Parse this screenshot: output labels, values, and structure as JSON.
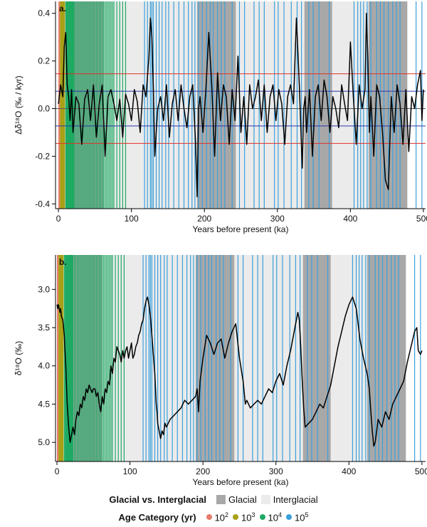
{
  "chart_data": [
    {
      "type": "line",
      "panel_label": "a.",
      "ylabel": "Δδ¹⁸O (‰ / kyr)",
      "xlabel": "Years before present (ka)",
      "xlim": [
        -4,
        503
      ],
      "ylim": [
        -0.42,
        0.45
      ],
      "xticks": [
        0,
        100,
        200,
        300,
        400,
        500
      ],
      "yticks": [
        -0.4,
        -0.2,
        0.0,
        0.2,
        0.4
      ],
      "ytick_labels": [
        "-0.4",
        "-0.2",
        "0.0",
        "0.2",
        "0.4"
      ],
      "hlines": [
        {
          "y": 0.146,
          "color": "#e0302b"
        },
        {
          "y": -0.146,
          "color": "#e0302b"
        },
        {
          "y": 0.073,
          "color": "#2b35a8"
        },
        {
          "y": -0.073,
          "color": "#2b35a8"
        },
        {
          "y": 0.0,
          "color": "#555555"
        }
      ],
      "series": [
        {
          "x": [
            0,
            3,
            6,
            8,
            10,
            12,
            14,
            16,
            18,
            20,
            24,
            28,
            32,
            36,
            40,
            44,
            48,
            52,
            56,
            60,
            64,
            68,
            72,
            76,
            80,
            84,
            88,
            92,
            96,
            100,
            104,
            108,
            112,
            116,
            120,
            124,
            126,
            128,
            130,
            132,
            134,
            136,
            140,
            144,
            148,
            152,
            156,
            160,
            164,
            168,
            172,
            176,
            180,
            184,
            188,
            190,
            192,
            194,
            198,
            202,
            206,
            210,
            214,
            218,
            222,
            226,
            230,
            234,
            238,
            242,
            246,
            250,
            254,
            258,
            262,
            266,
            270,
            274,
            278,
            282,
            286,
            290,
            294,
            298,
            302,
            306,
            310,
            314,
            318,
            322,
            326,
            330,
            334,
            336,
            338,
            340,
            344,
            348,
            352,
            356,
            360,
            364,
            368,
            372,
            376,
            380,
            384,
            388,
            392,
            396,
            400,
            404,
            408,
            412,
            416,
            420,
            422,
            424,
            426,
            428,
            432,
            436,
            440,
            444,
            448,
            452,
            456,
            460,
            464,
            468,
            472,
            476,
            480,
            484,
            488,
            492,
            496,
            498,
            500
          ],
          "values": [
            0.02,
            0.1,
            0.05,
            0.26,
            0.32,
            0.1,
            0.05,
            -0.05,
            0.08,
            -0.1,
            0.05,
            0.02,
            -0.15,
            0.04,
            0.08,
            -0.05,
            0.1,
            -0.12,
            0.02,
            0.1,
            -0.2,
            0.05,
            0.08,
            0.02,
            -0.05,
            0.04,
            -0.12,
            0.06,
            0.02,
            -0.05,
            0.08,
            0.03,
            -0.1,
            0.1,
            0.05,
            0.22,
            0.38,
            0.3,
            0.1,
            -0.2,
            -0.1,
            0.0,
            0.05,
            -0.05,
            0.1,
            -0.12,
            0.02,
            0.08,
            -0.05,
            0.1,
            0.0,
            -0.08,
            0.05,
            0.1,
            -0.15,
            -0.37,
            0.0,
            0.05,
            -0.1,
            0.08,
            0.32,
            0.1,
            -0.2,
            0.15,
            -0.05,
            0.1,
            0.05,
            -0.15,
            0.08,
            -0.05,
            0.22,
            -0.1,
            0.05,
            -0.15,
            0.1,
            0.0,
            0.05,
            0.12,
            -0.05,
            0.1,
            -0.1,
            0.05,
            0.1,
            -0.05,
            0.08,
            0.02,
            -0.15,
            0.05,
            0.1,
            0.02,
            0.38,
            0.1,
            -0.25,
            0.0,
            0.05,
            -0.1,
            0.08,
            -0.2,
            0.05,
            0.1,
            -0.05,
            0.12,
            0.05,
            -0.1,
            0.05,
            0.0,
            -0.08,
            0.1,
            0.02,
            -0.05,
            0.28,
            0.05,
            -0.15,
            0.1,
            0.0,
            0.08,
            0.4,
            0.2,
            -0.1,
            0.05,
            -0.2,
            0.1,
            0.05,
            -0.1,
            -0.3,
            -0.34,
            0.05,
            -0.1,
            0.1,
            0.02,
            -0.15,
            0.08,
            -0.18,
            0.05,
            0.0,
            0.1,
            0.16,
            -0.05,
            0.08
          ]
        }
      ]
    },
    {
      "type": "line",
      "panel_label": "b.",
      "ylabel": "δ¹⁸O (‰)",
      "xlabel": "Years before present (ka)",
      "xlim": [
        -2,
        505
      ],
      "ylim": [
        5.25,
        2.55
      ],
      "y_inverted": true,
      "xticks": [
        0,
        100,
        200,
        300,
        400,
        500
      ],
      "yticks": [
        3.0,
        3.5,
        4.0,
        4.5,
        5.0
      ],
      "ytick_labels": [
        "3.0",
        "3.5",
        "4.0",
        "4.5",
        "5.0"
      ],
      "series": [
        {
          "x": [
            0,
            1,
            2,
            4,
            5,
            6,
            8,
            10,
            12,
            14,
            16,
            18,
            20,
            22,
            24,
            26,
            28,
            30,
            32,
            34,
            36,
            38,
            40,
            42,
            44,
            46,
            48,
            50,
            52,
            54,
            56,
            58,
            60,
            62,
            64,
            66,
            68,
            70,
            72,
            74,
            76,
            78,
            80,
            82,
            84,
            86,
            88,
            90,
            92,
            94,
            96,
            98,
            100,
            102,
            104,
            106,
            108,
            110,
            112,
            114,
            116,
            118,
            120,
            122,
            124,
            126,
            128,
            130,
            132,
            134,
            135,
            136,
            137,
            138,
            140,
            142,
            144,
            146,
            148,
            150,
            155,
            160,
            165,
            170,
            175,
            180,
            185,
            190,
            192,
            194,
            196,
            200,
            205,
            210,
            215,
            220,
            225,
            230,
            235,
            240,
            245,
            250,
            255,
            258,
            260,
            265,
            270,
            275,
            280,
            285,
            290,
            295,
            300,
            305,
            310,
            315,
            320,
            325,
            330,
            332,
            334,
            336,
            338,
            340,
            345,
            350,
            355,
            360,
            365,
            370,
            375,
            380,
            385,
            390,
            395,
            400,
            405,
            410,
            412,
            415,
            420,
            425,
            428,
            430,
            432,
            434,
            436,
            438,
            440,
            445,
            450,
            455,
            460,
            465,
            470,
            475,
            480,
            485,
            490,
            493,
            495,
            498,
            500
          ],
          "values": [
            3.2,
            3.25,
            3.2,
            3.3,
            3.25,
            3.35,
            3.4,
            3.6,
            4.0,
            4.5,
            4.8,
            5.0,
            4.9,
            4.8,
            4.9,
            4.7,
            4.6,
            4.65,
            4.5,
            4.55,
            4.4,
            4.45,
            4.3,
            4.35,
            4.25,
            4.3,
            4.35,
            4.3,
            4.3,
            4.4,
            4.35,
            4.5,
            4.6,
            4.4,
            4.5,
            4.3,
            4.35,
            4.2,
            4.25,
            4.0,
            4.1,
            3.9,
            3.95,
            3.75,
            3.8,
            3.85,
            3.95,
            3.8,
            3.9,
            3.8,
            3.75,
            3.9,
            3.8,
            3.7,
            3.9,
            3.85,
            3.75,
            3.7,
            3.6,
            3.55,
            3.45,
            3.4,
            3.25,
            3.15,
            3.1,
            3.2,
            3.35,
            3.6,
            3.85,
            4.1,
            4.3,
            4.5,
            4.6,
            4.75,
            4.85,
            4.95,
            4.85,
            4.9,
            4.75,
            4.8,
            4.7,
            4.65,
            4.6,
            4.55,
            4.45,
            4.5,
            4.45,
            4.4,
            4.3,
            4.6,
            4.2,
            3.9,
            3.6,
            3.7,
            3.85,
            3.7,
            3.65,
            3.9,
            3.7,
            3.55,
            3.45,
            3.9,
            4.2,
            4.5,
            4.45,
            4.55,
            4.5,
            4.45,
            4.5,
            4.4,
            4.3,
            4.35,
            4.2,
            4.1,
            4.25,
            4.0,
            3.8,
            3.55,
            3.3,
            3.4,
            3.75,
            4.2,
            4.55,
            4.8,
            4.75,
            4.7,
            4.6,
            4.5,
            4.55,
            4.4,
            4.25,
            4.0,
            3.75,
            3.55,
            3.35,
            3.2,
            3.1,
            3.25,
            3.4,
            3.65,
            3.9,
            4.1,
            4.3,
            4.6,
            4.85,
            5.05,
            5.0,
            4.85,
            4.7,
            4.8,
            4.6,
            4.7,
            4.5,
            4.4,
            4.3,
            4.2,
            3.95,
            3.75,
            3.55,
            3.5,
            3.8,
            3.85,
            3.8
          ]
        }
      ]
    }
  ],
  "shading": {
    "glacial_color": "#a8a8a8",
    "interglacial_color": "#ebebeb",
    "glacial_periods": [
      [
        14,
        62
      ],
      [
        190,
        243
      ],
      [
        337,
        375
      ],
      [
        425,
        478
      ]
    ],
    "interglacial_periods": [
      [
        62,
        130
      ],
      [
        130,
        190
      ],
      [
        243,
        337
      ],
      [
        375,
        425
      ]
    ]
  },
  "age_markers": {
    "colors": {
      "1e2": "#e77b6a",
      "1e3": "#a8a017",
      "1e4": "#1faa63",
      "1e5": "#3aa0dc"
    },
    "band_1e2": [
      0,
      2
    ],
    "band_1e3": [
      2,
      9
    ],
    "lines_1e4": [
      10,
      11,
      12,
      13,
      14,
      15,
      16,
      17,
      18,
      19,
      20,
      21,
      22,
      24,
      26,
      28,
      30,
      32,
      34,
      36,
      38,
      40,
      42,
      44,
      46,
      48,
      50,
      52,
      54,
      56,
      58,
      60,
      62,
      64,
      66,
      68,
      70,
      72,
      74,
      76,
      80,
      84,
      88,
      92
    ],
    "lines_1e5": [
      118,
      122,
      126,
      128,
      130,
      134,
      138,
      142,
      147,
      151,
      158,
      165,
      172,
      178,
      183,
      187,
      192,
      197,
      203,
      208,
      212,
      218,
      223,
      228,
      238,
      248,
      255,
      268,
      275,
      282,
      296,
      301,
      309,
      319,
      327,
      333,
      343,
      349,
      357,
      371,
      405,
      410,
      414,
      418,
      423,
      428,
      436,
      441,
      446,
      452,
      458,
      463,
      468,
      490,
      498
    ]
  },
  "legend": {
    "glacial_title": "Glacial vs. Interglacial",
    "glacial_label": "Glacial",
    "interglacial_label": "Interglacial",
    "age_title": "Age Category (yr)",
    "age_items": [
      {
        "base": "10",
        "exp": "2",
        "color": "#e77b6a"
      },
      {
        "base": "10",
        "exp": "3",
        "color": "#a8a017"
      },
      {
        "base": "10",
        "exp": "4",
        "color": "#1faa63"
      },
      {
        "base": "10",
        "exp": "5",
        "color": "#3aa0dc"
      }
    ]
  }
}
